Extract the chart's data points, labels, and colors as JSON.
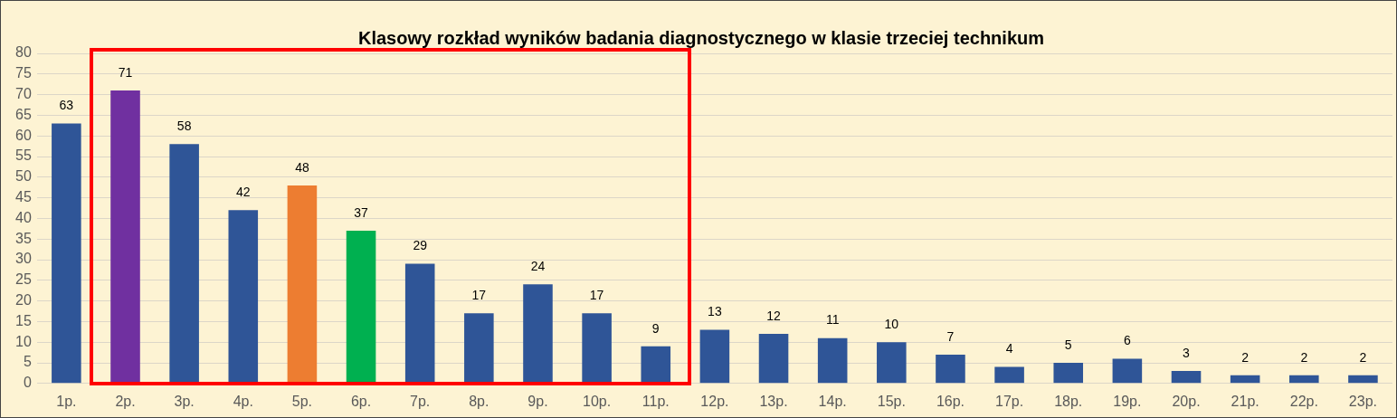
{
  "chart_data": {
    "type": "bar",
    "title": "Klasowy rozkład wyników badania diagnostycznego w klasie trzeciej technikum",
    "categories": [
      "1p.",
      "2p.",
      "3p.",
      "4p.",
      "5p.",
      "6p.",
      "7p.",
      "8p.",
      "9p.",
      "10p.",
      "11p.",
      "12p.",
      "13p.",
      "14p.",
      "15p.",
      "16p.",
      "17p.",
      "18p.",
      "19p.",
      "20p.",
      "21p.",
      "22p.",
      "23p."
    ],
    "values": [
      63,
      71,
      58,
      42,
      48,
      37,
      29,
      17,
      24,
      17,
      9,
      13,
      12,
      11,
      10,
      7,
      4,
      5,
      6,
      3,
      2,
      2,
      2
    ],
    "colors": [
      "#2f5597",
      "#7030a0",
      "#2f5597",
      "#2f5597",
      "#ed7d31",
      "#00b050",
      "#2f5597",
      "#2f5597",
      "#2f5597",
      "#2f5597",
      "#2f5597",
      "#2f5597",
      "#2f5597",
      "#2f5597",
      "#2f5597",
      "#2f5597",
      "#2f5597",
      "#2f5597",
      "#2f5597",
      "#2f5597",
      "#2f5597",
      "#2f5597",
      "#2f5597"
    ],
    "ylim": [
      0,
      80
    ],
    "yticks": [
      0,
      5,
      10,
      15,
      20,
      25,
      30,
      35,
      40,
      45,
      50,
      55,
      60,
      65,
      70,
      75,
      80
    ],
    "grid": "y",
    "data_labels": true,
    "legend": false
  }
}
